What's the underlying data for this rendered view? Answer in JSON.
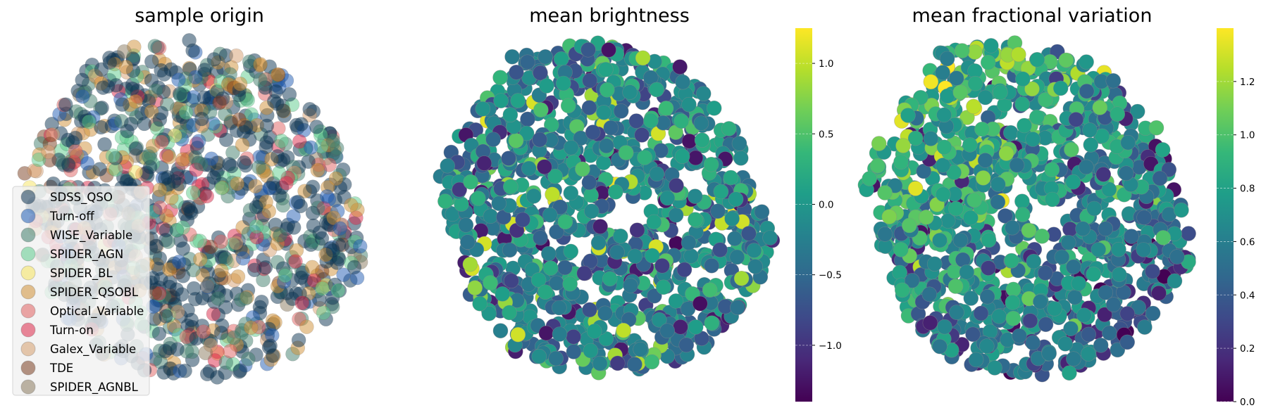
{
  "chart_data": [
    {
      "type": "scatter",
      "title": "sample origin",
      "xlabel": "",
      "ylabel": "",
      "axes_visible": false,
      "legend": {
        "placement": "lower-left",
        "entries": [
          {
            "label": "SDSS_QSO",
            "color": "#0c3352"
          },
          {
            "label": "Turn-off",
            "color": "#1f5cb4"
          },
          {
            "label": "WISE_Variable",
            "color": "#3f7e6b"
          },
          {
            "label": "SPIDER_AGN",
            "color": "#5ccb8c"
          },
          {
            "label": "SPIDER_BL",
            "color": "#f6e35d"
          },
          {
            "label": "SPIDER_QSOBL",
            "color": "#cf9036"
          },
          {
            "label": "Optical_Variable",
            "color": "#e06060"
          },
          {
            "label": "Turn-on",
            "color": "#dc2848"
          },
          {
            "label": "Galex_Variable",
            "color": "#d59e6e"
          },
          {
            "label": "TDE",
            "color": "#7a3e20"
          },
          {
            "label": "SPIDER_AGNBL",
            "color": "#8a7a5e"
          }
        ]
      },
      "category_mix": [
        {
          "label": "SDSS_QSO",
          "fraction": 0.44
        },
        {
          "label": "Turn-off",
          "fraction": 0.06
        },
        {
          "label": "WISE_Variable",
          "fraction": 0.13
        },
        {
          "label": "SPIDER_AGN",
          "fraction": 0.09
        },
        {
          "label": "SPIDER_BL",
          "fraction": 0.01
        },
        {
          "label": "SPIDER_QSOBL",
          "fraction": 0.13
        },
        {
          "label": "Optical_Variable",
          "fraction": 0.04
        },
        {
          "label": "Turn-on",
          "fraction": 0.04
        },
        {
          "label": "Galex_Variable",
          "fraction": 0.03
        },
        {
          "label": "TDE",
          "fraction": 0.02
        },
        {
          "label": "SPIDER_AGNBL",
          "fraction": 0.01
        }
      ],
      "n_points": 1100
    },
    {
      "type": "scatter",
      "title": "mean brightness",
      "xlabel": "",
      "ylabel": "",
      "axes_visible": false,
      "colormap": "viridis",
      "colorbar": {
        "min": -1.4,
        "max": 1.25,
        "ticks": [
          -1.0,
          -0.5,
          0.0,
          0.5,
          1.0
        ],
        "tick_labels": [
          "−1.0",
          "−0.5",
          "0.0",
          "0.5",
          "1.0"
        ]
      },
      "value_distribution": {
        "mean": -0.2,
        "sd": 0.38
      },
      "n_points": 1100
    },
    {
      "type": "scatter",
      "title": "mean fractional variation",
      "xlabel": "",
      "ylabel": "",
      "axes_visible": false,
      "colormap": "viridis",
      "colorbar": {
        "min": 0.0,
        "max": 1.4,
        "ticks": [
          0.0,
          0.2,
          0.4,
          0.6,
          0.8,
          1.0,
          1.2
        ],
        "tick_labels": [
          "0.0",
          "0.2",
          "0.4",
          "0.6",
          "0.8",
          "1.0",
          "1.2"
        ]
      },
      "value_distribution": {
        "mean": 0.7,
        "sd": 0.22,
        "gradient": "higher toward upper-left"
      },
      "n_points": 1100
    }
  ]
}
